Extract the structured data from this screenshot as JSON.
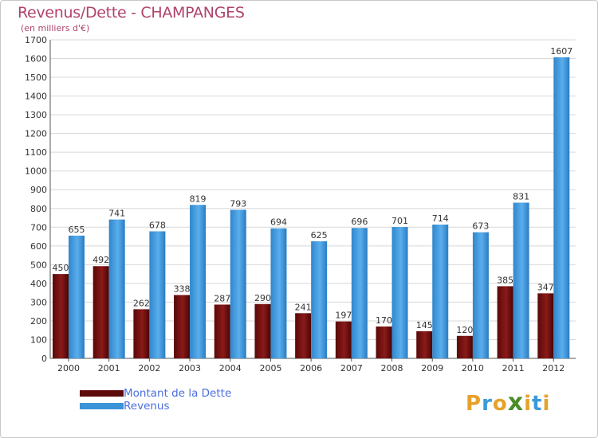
{
  "chart_data": {
    "type": "bar",
    "title": "Revenus/Dette - CHAMPANGES",
    "subtitle": "(en milliers d'€)",
    "categories": [
      "2000",
      "2001",
      "2002",
      "2003",
      "2004",
      "2005",
      "2006",
      "2007",
      "2008",
      "2009",
      "2010",
      "2011",
      "2012"
    ],
    "series": [
      {
        "name": "Montant de la Dette",
        "color": "#6b0d0d",
        "values": [
          450,
          492,
          262,
          338,
          287,
          290,
          241,
          197,
          170,
          145,
          120,
          385,
          347
        ]
      },
      {
        "name": "Revenus",
        "color": "#3b93d8",
        "values": [
          655,
          741,
          678,
          819,
          793,
          694,
          625,
          696,
          701,
          714,
          673,
          831,
          1607
        ]
      }
    ],
    "ylim": [
      0,
      1700
    ],
    "yticks": [
      0,
      100,
      200,
      300,
      400,
      500,
      600,
      700,
      800,
      900,
      1000,
      1100,
      1200,
      1300,
      1400,
      1500,
      1600,
      1700
    ],
    "grid": true,
    "legend_position": "bottom-left"
  },
  "logo": {
    "letters": [
      "P",
      "r",
      "o",
      "x",
      "i",
      "t",
      "i"
    ],
    "colors": [
      "#e6a12a",
      "#3b9ad8",
      "#e6a12a",
      "#4a8d2a",
      "#e6a12a",
      "#3b9ad8",
      "#e6a12a"
    ]
  }
}
